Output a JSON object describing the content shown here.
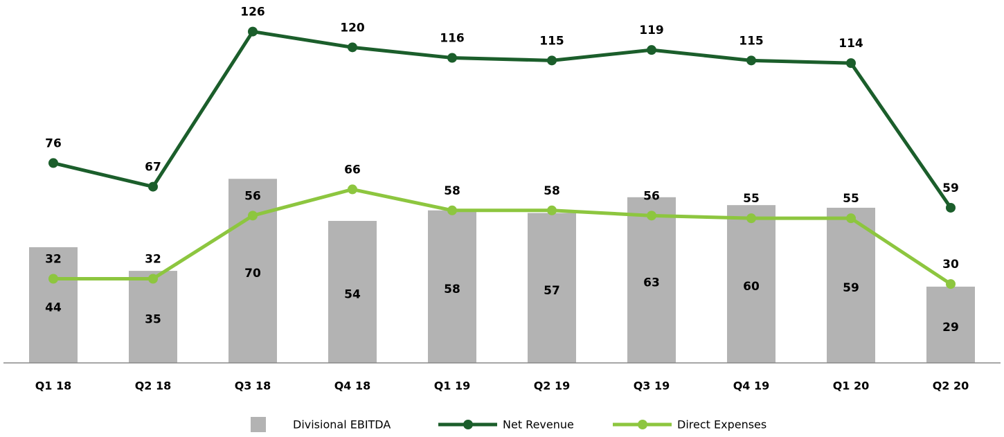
{
  "chart_data": {
    "type": "bar-line",
    "categories": [
      "Q1 18",
      "Q2 18",
      "Q3 18",
      "Q4 18",
      "Q1 19",
      "Q2 19",
      "Q3 19",
      "Q4 19",
      "Q1 20",
      "Q2 20"
    ],
    "series": [
      {
        "name": "Divisional EBITDA",
        "type": "bar",
        "color": "#b3b3b3",
        "values": [
          44,
          35,
          70,
          54,
          58,
          57,
          63,
          60,
          59,
          29
        ]
      },
      {
        "name": "Net Revenue",
        "type": "line",
        "color": "#1b5e2b",
        "values": [
          76,
          67,
          126,
          120,
          116,
          115,
          119,
          115,
          114,
          59
        ]
      },
      {
        "name": "Direct Expenses",
        "type": "line",
        "color": "#8dc63f",
        "values": [
          32,
          32,
          56,
          66,
          58,
          58,
          56,
          55,
          55,
          30
        ]
      }
    ],
    "ylim": [
      0,
      138
    ],
    "legend": "bottom"
  }
}
